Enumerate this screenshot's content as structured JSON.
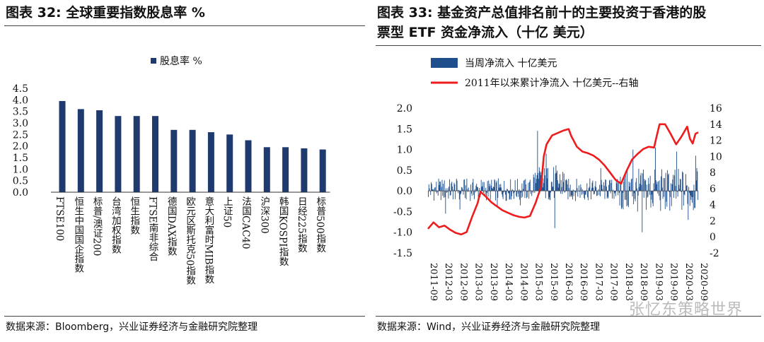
{
  "left": {
    "title": "图表 32: 全球重要指数股息率 %",
    "source": "数据来源：Bloomberg，兴业证券经济与金融研究院整理"
  },
  "right": {
    "title_line1": "图表 33: 基金资产总值排名前十的主要投资于香港的股",
    "title_line2": "票型 ETF 资金净流入（十亿 美元）",
    "source": "数据来源：Wind，兴业证券经济与金融研究院整理"
  },
  "watermark": "张忆东策略世界",
  "chart_data": [
    {
      "type": "bar",
      "legend": "股息率 %",
      "categories": [
        "FTSE100",
        "恒生中国国企指数",
        "标普/澳证200",
        "台湾加权指数",
        "恒生指数",
        "FTSE南非综合",
        "德国DAX指数",
        "欧元区斯托克50指数",
        "意大利富时MIB指数",
        "上证50",
        "法国CAC40",
        "沪深300",
        "韩国KOSPI指数",
        "日经225指数",
        "标普500指数"
      ],
      "values": [
        3.95,
        3.6,
        3.55,
        3.3,
        3.3,
        3.3,
        2.7,
        2.7,
        2.6,
        2.5,
        2.25,
        1.95,
        1.95,
        1.9,
        1.85
      ],
      "ylim": [
        0,
        4.5
      ],
      "yticks": [
        "4.5",
        "4.0",
        "3.5",
        "3.0",
        "2.5",
        "2.0",
        "1.5",
        "1.0",
        "0.5",
        "0.0"
      ],
      "color": "#1f3a6e"
    },
    {
      "type": "bar+line",
      "series": [
        {
          "name": "当周净流入 十亿美元",
          "axis": "left",
          "color": "#1f4e8c"
        },
        {
          "name": "2011年以来累计净流入 十亿美元--右轴",
          "axis": "right",
          "color": "#ee1c1c"
        }
      ],
      "x_ticks": [
        "2011-09",
        "2012-03",
        "2012-09",
        "2013-03",
        "2013-09",
        "2014-03",
        "2014-09",
        "2015-03",
        "2015-09",
        "2016-03",
        "2016-09",
        "2017-03",
        "2017-09",
        "2018-03",
        "2018-09",
        "2019-03",
        "2019-09",
        "2020-03",
        "2020-09"
      ],
      "y_left": {
        "range": [
          -1.5,
          2.0
        ],
        "ticks": [
          "2.0",
          "1.5",
          "1.0",
          "0.5",
          "0.0",
          "-0.5",
          "-1.0",
          "-1.5"
        ]
      },
      "y_right": {
        "range": [
          -2,
          16
        ],
        "ticks": [
          "16",
          "14",
          "12",
          "10",
          "8",
          "6",
          "4",
          "2",
          "0",
          "-2"
        ]
      },
      "cumulative": [
        [
          0,
          1.0
        ],
        [
          2,
          1.8
        ],
        [
          4,
          1.2
        ],
        [
          6,
          1.4
        ],
        [
          8,
          0.9
        ],
        [
          10,
          0.5
        ],
        [
          12,
          0.3
        ],
        [
          14,
          0.6
        ],
        [
          16,
          2.5
        ],
        [
          18,
          4.2
        ],
        [
          19,
          5.6
        ],
        [
          21,
          5.0
        ],
        [
          23,
          4.3
        ],
        [
          25,
          3.8
        ],
        [
          27,
          3.3
        ],
        [
          29,
          3.0
        ],
        [
          31,
          2.7
        ],
        [
          33,
          2.5
        ],
        [
          35,
          2.4
        ],
        [
          37,
          2.6
        ],
        [
          39,
          4.2
        ],
        [
          41,
          6.2
        ],
        [
          42,
          10.0
        ],
        [
          43,
          11.5
        ],
        [
          45,
          12.6
        ],
        [
          47,
          12.9
        ],
        [
          49,
          13.2
        ],
        [
          51,
          13.4
        ],
        [
          52,
          12.5
        ],
        [
          54,
          11.2
        ],
        [
          56,
          10.6
        ],
        [
          58,
          10.4
        ],
        [
          60,
          10.1
        ],
        [
          62,
          9.6
        ],
        [
          64,
          8.9
        ],
        [
          66,
          8.0
        ],
        [
          68,
          7.1
        ],
        [
          70,
          6.6
        ],
        [
          72,
          8.2
        ],
        [
          74,
          9.6
        ],
        [
          76,
          10.3
        ],
        [
          78,
          10.9
        ],
        [
          80,
          11.2
        ],
        [
          82,
          11.1
        ],
        [
          83,
          12.6
        ],
        [
          84,
          14.0
        ],
        [
          86,
          14.0
        ],
        [
          88,
          12.8
        ],
        [
          90,
          11.5
        ],
        [
          92,
          12.5
        ],
        [
          94,
          13.7
        ],
        [
          95,
          12.2
        ],
        [
          96,
          11.6
        ],
        [
          97,
          12.8
        ],
        [
          98,
          13.0
        ]
      ],
      "weekly_pattern_note": "weekly bars approx 0 to ±0.5, larger spikes near 2015-03 (+1.45), 2015-09, 2019-09 (-1.0), 2020-09 (+0.85)"
    }
  ]
}
